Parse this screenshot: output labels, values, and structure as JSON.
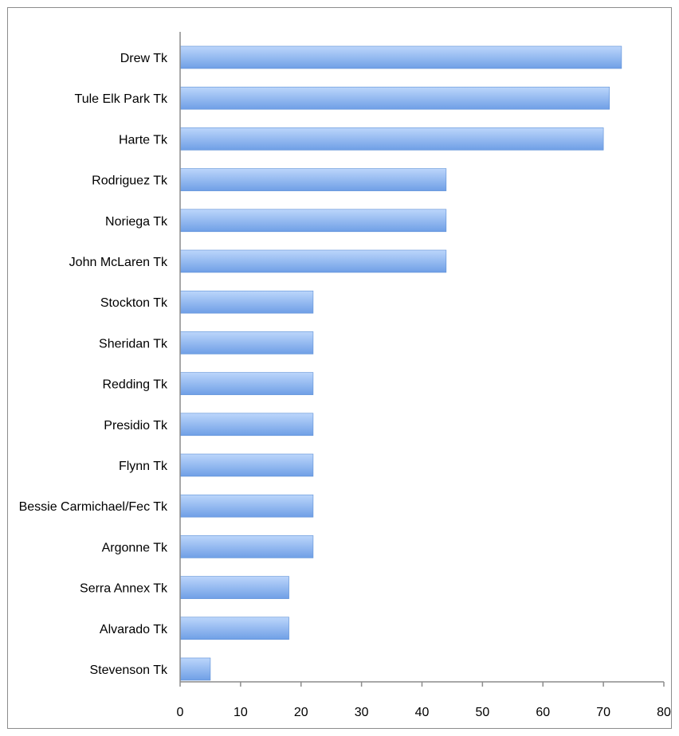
{
  "chart_data": {
    "type": "bar",
    "orientation": "horizontal",
    "title": "",
    "xlabel": "",
    "ylabel": "",
    "categories": [
      "Drew Tk",
      "Tule Elk Park Tk",
      "Harte Tk",
      "Rodriguez Tk",
      "Noriega Tk",
      "John McLaren Tk",
      "Stockton Tk",
      "Sheridan Tk",
      "Redding Tk",
      "Presidio Tk",
      "Flynn Tk",
      "Bessie Carmichael/Fec Tk",
      "Argonne Tk",
      "Serra Annex Tk",
      "Alvarado Tk",
      "Stevenson Tk"
    ],
    "values": [
      73,
      71,
      70,
      44,
      44,
      44,
      22,
      22,
      22,
      22,
      22,
      22,
      22,
      18,
      18,
      5
    ],
    "xlim": [
      0,
      80
    ],
    "xticks": [
      "0",
      "10",
      "20",
      "30",
      "40",
      "50",
      "60",
      "70",
      "80"
    ],
    "grid": false,
    "legend": "none",
    "colors": {
      "bar_top": "#bcd6fb",
      "bar_bottom": "#6f9fe6",
      "bar_edge": "#5b8ed6",
      "axis": "#8c8c8c"
    }
  }
}
